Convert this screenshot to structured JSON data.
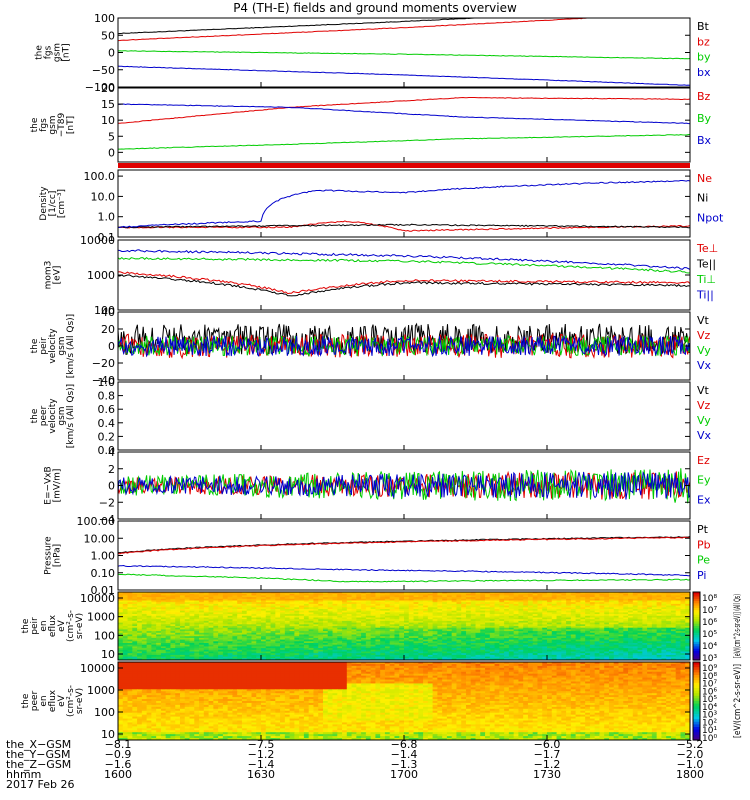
{
  "title": "P4 (TH-E) fields and ground moments overview",
  "chart_data": [
    {
      "type": "line",
      "ylabel": [
        "the",
        "fgs",
        "gsm",
        "[nT]"
      ],
      "ylim": [
        -100,
        100
      ],
      "yticks": [
        "100",
        "50",
        "0",
        "−50",
        "−100"
      ],
      "ytick_values": [
        100,
        50,
        0,
        -50,
        -100
      ],
      "series": [
        {
          "name": "Bt",
          "color": "#000000",
          "x": [
            0,
            0.5,
            1
          ],
          "values": [
            55,
            90,
            130
          ]
        },
        {
          "name": "bz",
          "color": "#e00000",
          "x": [
            0,
            0.5,
            1
          ],
          "values": [
            35,
            72,
            115
          ]
        },
        {
          "name": "by",
          "color": "#00cc00",
          "x": [
            0,
            0.5,
            1
          ],
          "values": [
            5,
            -5,
            -18
          ]
        },
        {
          "name": "bx",
          "color": "#0000cc",
          "x": [
            0,
            0.5,
            1
          ],
          "values": [
            -40,
            -65,
            -95
          ]
        }
      ]
    },
    {
      "type": "line",
      "ylabel": [
        "the",
        "fgs",
        "gsm",
        "−T89",
        "[nT]"
      ],
      "ylim": [
        -3,
        20
      ],
      "yticks": [
        "20",
        "15",
        "10",
        "5",
        "0"
      ],
      "ytick_values": [
        20,
        15,
        10,
        5,
        0
      ],
      "series": [
        {
          "name": "Bz",
          "color": "#e00000",
          "x": [
            0,
            0.3,
            0.6,
            1
          ],
          "values": [
            9,
            14,
            17,
            16.5
          ]
        },
        {
          "name": "By",
          "color": "#00cc00",
          "x": [
            0,
            0.3,
            0.6,
            1
          ],
          "values": [
            1,
            2.5,
            4.2,
            5.5
          ]
        },
        {
          "name": "Bx",
          "color": "#0000cc",
          "x": [
            0,
            0.3,
            0.6,
            1
          ],
          "values": [
            15,
            14,
            11,
            9
          ]
        }
      ]
    },
    {
      "type": "line",
      "ylog": true,
      "ylabel": [
        "Density",
        "[1/cc]",
        "[cm⁻³]"
      ],
      "ylim": [
        0.1,
        200
      ],
      "yticks": [
        "100.0",
        "10.0",
        "1.0",
        "0.1"
      ],
      "ytick_values": [
        100,
        10,
        1,
        0.1
      ],
      "series": [
        {
          "name": "Ne",
          "color": "#e00000",
          "x": [
            0,
            0.3,
            0.4,
            0.5,
            1
          ],
          "values": [
            0.3,
            0.3,
            0.6,
            0.2,
            0.35
          ]
        },
        {
          "name": "Ni",
          "color": "#000000",
          "x": [
            0,
            0.5,
            1
          ],
          "values": [
            0.3,
            0.4,
            0.3
          ]
        },
        {
          "name": "Npot",
          "color": "#0000cc",
          "x": [
            0,
            0.25,
            0.35,
            0.5,
            1
          ],
          "values": [
            0.3,
            0.6,
            20,
            15,
            60
          ]
        }
      ]
    },
    {
      "type": "line",
      "ylog": true,
      "ylabel": [
        "mom3",
        "[eV]"
      ],
      "ylim": [
        100,
        10000
      ],
      "yticks": [
        "10000",
        "1000",
        "100"
      ],
      "ytick_values": [
        10000,
        1000,
        100
      ],
      "series": [
        {
          "name": "Te⊥",
          "color": "#e00000",
          "x": [
            0,
            0.3,
            0.5,
            1
          ],
          "values": [
            1200,
            300,
            700,
            600
          ]
        },
        {
          "name": "Te||",
          "color": "#000000",
          "x": [
            0,
            0.3,
            0.5,
            1
          ],
          "values": [
            1000,
            250,
            600,
            500
          ]
        },
        {
          "name": "Ti⊥",
          "color": "#00cc00",
          "x": [
            0,
            0.5,
            1
          ],
          "values": [
            3000,
            2500,
            1200
          ]
        },
        {
          "name": "Ti||",
          "color": "#0000cc",
          "x": [
            0,
            0.5,
            1
          ],
          "values": [
            5000,
            3500,
            1500
          ]
        }
      ]
    },
    {
      "type": "line",
      "ylabel": [
        "the",
        "peir",
        "velocity",
        "gsm",
        "[km/s (All Qs)]"
      ],
      "ylim": [
        -40,
        40
      ],
      "yticks": [
        "40",
        "20",
        "0",
        "−20",
        "−40"
      ],
      "ytick_values": [
        40,
        20,
        0,
        -20,
        -40
      ],
      "series": [
        {
          "name": "Vt",
          "color": "#000000"
        },
        {
          "name": "Vz",
          "color": "#e00000"
        },
        {
          "name": "Vy",
          "color": "#00cc00"
        },
        {
          "name": "Vx",
          "color": "#0000cc"
        }
      ]
    },
    {
      "type": "line",
      "ylabel": [
        "the",
        "peer",
        "velocity",
        "gsm",
        "[km/s (All Qs)]"
      ],
      "ylim": [
        0,
        1
      ],
      "yticks": [
        "1.0",
        "0.8",
        "0.6",
        "0.4",
        "0.2",
        "0.0"
      ],
      "ytick_values": [
        1,
        0.8,
        0.6,
        0.4,
        0.2,
        0
      ],
      "series": [
        {
          "name": "Vt",
          "color": "#000000"
        },
        {
          "name": "Vz",
          "color": "#e00000"
        },
        {
          "name": "Vy",
          "color": "#00cc00"
        },
        {
          "name": "Vx",
          "color": "#0000cc"
        }
      ]
    },
    {
      "type": "line",
      "ylabel": [
        "E=−VxB",
        "[mV/m]"
      ],
      "ylim": [
        -4,
        4
      ],
      "yticks": [
        "4",
        "2",
        "0",
        "−2",
        "−4"
      ],
      "ytick_values": [
        4,
        2,
        0,
        -2,
        -4
      ],
      "series": [
        {
          "name": "Ez",
          "color": "#e00000"
        },
        {
          "name": "Ey",
          "color": "#00cc00"
        },
        {
          "name": "Ex",
          "color": "#0000cc"
        }
      ]
    },
    {
      "type": "line",
      "ylog": true,
      "ylabel": [
        "Pressure",
        "[nPa]"
      ],
      "ylim": [
        0.01,
        100
      ],
      "yticks": [
        "100.00",
        "10.00",
        "1.00",
        "0.10",
        "0.01"
      ],
      "ytick_values": [
        100,
        10,
        1,
        0.1,
        0.01
      ],
      "series": [
        {
          "name": "Pt",
          "color": "#000000",
          "x": [
            0,
            1
          ],
          "values": [
            1.4,
            12
          ]
        },
        {
          "name": "Pb",
          "color": "#e00000",
          "x": [
            0,
            1
          ],
          "values": [
            1.3,
            11
          ]
        },
        {
          "name": "Pe",
          "color": "#00cc00",
          "x": [
            0,
            0.4,
            1
          ],
          "values": [
            0.08,
            0.03,
            0.04
          ]
        },
        {
          "name": "Pi",
          "color": "#0000cc",
          "x": [
            0,
            0.4,
            1
          ],
          "values": [
            0.25,
            0.15,
            0.07
          ]
        }
      ]
    },
    {
      "type": "heatmap",
      "ylabel": [
        "the",
        "peir",
        "en",
        "eflux",
        "eV",
        "(cm²-s-",
        "sr-eV)"
      ],
      "yticks": [
        "10000",
        "1000",
        "100",
        "10"
      ],
      "colorbar_ticks": [
        "10⁸",
        "10⁷",
        "10⁶",
        "10⁵",
        "10⁴",
        "10³"
      ],
      "colorbar_label": "[eV/(cm^2-s-sr-eV)] (All Qs)"
    },
    {
      "type": "heatmap",
      "ylabel": [
        "the",
        "peer",
        "en",
        "eflux",
        "eV",
        "(cm²-s-",
        "sr-eV)"
      ],
      "yticks": [
        "10000",
        "1000",
        "100",
        "10"
      ],
      "colorbar_ticks": [
        "10⁹",
        "10⁸",
        "10⁷",
        "10⁶",
        "10⁵",
        "10⁴",
        "10³",
        "10²",
        "10¹",
        "10⁰"
      ],
      "colorbar_label": "[eV/(cm^2-s-sr-eV)]"
    }
  ],
  "xaxis": {
    "rows": [
      {
        "label": "the_X−GSM",
        "values": [
          "−8.1",
          "−7.5",
          "−6.8",
          "−6.0",
          "−5.2"
        ]
      },
      {
        "label": "the_Y−GSM",
        "values": [
          "−0.9",
          "−1.2",
          "−1.4",
          "−1.7",
          "−2.0"
        ]
      },
      {
        "label": "the_Z−GSM",
        "values": [
          "−1.6",
          "−1.4",
          "−1.3",
          "−1.2",
          "−1.0"
        ]
      },
      {
        "label": "hhmm",
        "values": [
          "1600",
          "1630",
          "1700",
          "1730",
          "1800"
        ]
      }
    ],
    "date": "2017 Feb 26"
  }
}
